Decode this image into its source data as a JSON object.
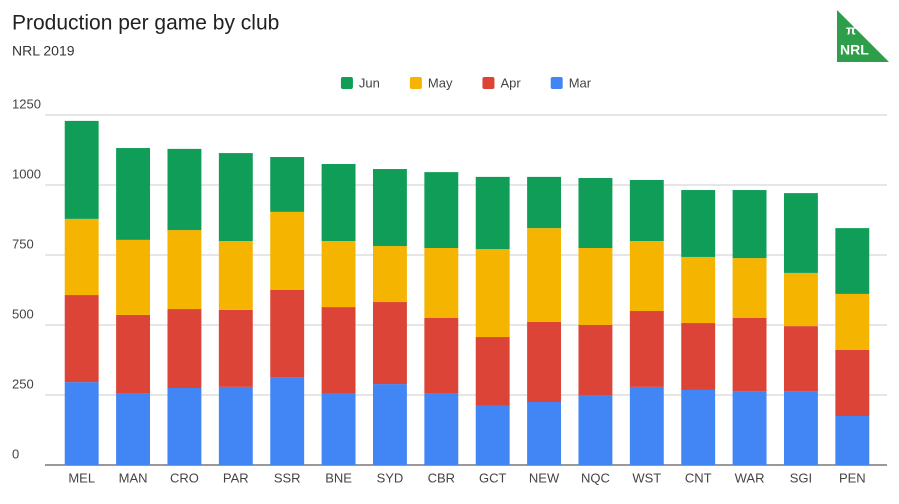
{
  "chart_data": {
    "type": "stacked_bar",
    "title": "Production per game by club",
    "subtitle": "NRL 2019",
    "categories": [
      "MEL",
      "MAN",
      "CRO",
      "PAR",
      "SSR",
      "BNE",
      "SYD",
      "CBR",
      "GCT",
      "NEW",
      "NQC",
      "WST",
      "CNT",
      "WAR",
      "SGI",
      "PEN"
    ],
    "series": [
      {
        "name": "Mar",
        "color": "#4285f4",
        "values": [
          296,
          257,
          275,
          279,
          314,
          254,
          289,
          257,
          211,
          225,
          250,
          279,
          268,
          264,
          264,
          175
        ]
      },
      {
        "name": "Apr",
        "color": "#db4437",
        "values": [
          311,
          279,
          282,
          275,
          311,
          310,
          293,
          268,
          246,
          286,
          250,
          271,
          239,
          261,
          232,
          236
        ]
      },
      {
        "name": "May",
        "color": "#f4b400",
        "values": [
          272,
          268,
          282,
          246,
          279,
          236,
          200,
          250,
          314,
          335,
          275,
          250,
          236,
          214,
          190,
          200
        ]
      },
      {
        "name": "Jun",
        "color": "#0f9d58",
        "values": [
          350,
          328,
          290,
          314,
          196,
          275,
          275,
          271,
          258,
          183,
          250,
          218,
          239,
          243,
          285,
          235
        ]
      }
    ],
    "ylim": [
      0,
      1250
    ],
    "yticks": [
      0,
      250,
      500,
      750,
      1000,
      1250
    ],
    "grid": true,
    "legend": "top",
    "logo": {
      "symbol": "π",
      "text": "NRL",
      "color": "#2e9e4a"
    }
  }
}
